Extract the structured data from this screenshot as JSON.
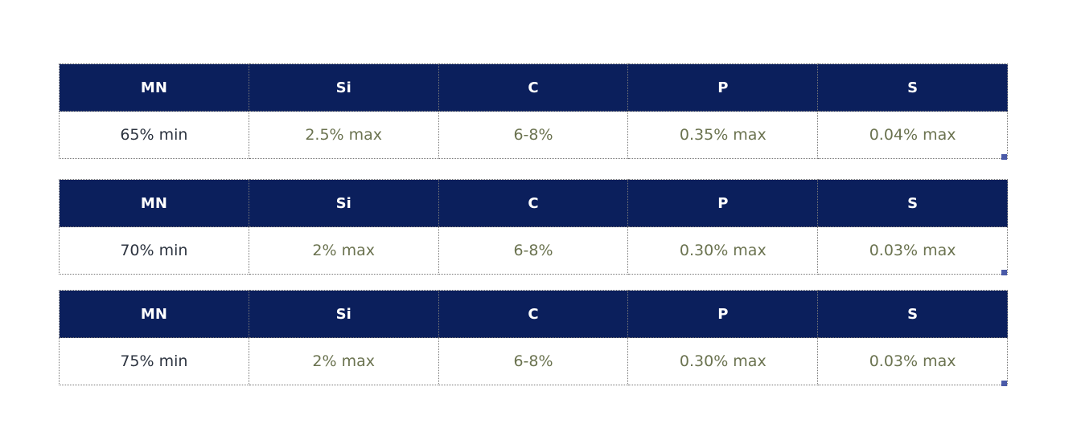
{
  "headers": [
    "MN",
    "Si",
    "C",
    "P",
    "S"
  ],
  "tables": [
    {
      "values": [
        "65% min",
        "2.5% max",
        "6-8%",
        "0.35% max",
        "0.04% max"
      ]
    },
    {
      "values": [
        "70% min",
        "2% max",
        "6-8%",
        "0.30% max",
        "0.03% max"
      ]
    },
    {
      "values": [
        "75% min",
        "2% max",
        "6-8%",
        "0.30% max",
        "0.03% max"
      ]
    }
  ],
  "colors": {
    "header_bg": "#0b1f5c",
    "value_text": "#6b7350",
    "first_col_text": "#2d3440"
  }
}
